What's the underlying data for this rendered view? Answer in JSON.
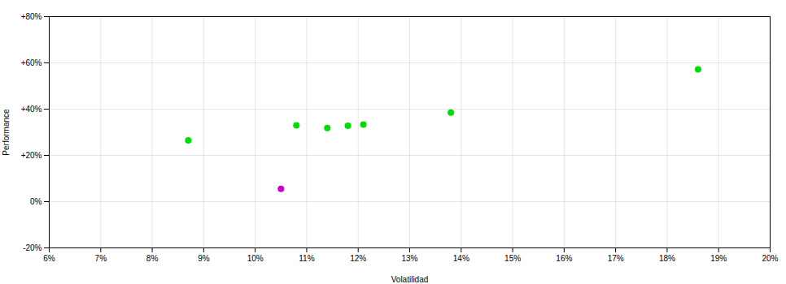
{
  "chart_data": {
    "type": "scatter",
    "x_label": "Volatilidad",
    "y_label": "Performance",
    "series": [
      {
        "color": "#00dd00",
        "x": [
          0.087,
          0.108,
          0.114,
          0.118,
          0.121,
          0.138,
          0.186
        ],
        "values": [
          0.265,
          0.33,
          0.318,
          0.328,
          0.333,
          0.385,
          0.572
        ]
      },
      {
        "color": "#cc00cc",
        "x": [
          0.105
        ],
        "values": [
          0.055
        ]
      }
    ],
    "xlim": [
      0.06,
      0.2
    ],
    "ylim": [
      -0.2,
      0.8
    ],
    "xticks": [
      {
        "value": 0.06,
        "label": "6%"
      },
      {
        "value": 0.07,
        "label": "7%"
      },
      {
        "value": 0.08,
        "label": "8%"
      },
      {
        "value": 0.09,
        "label": "9%"
      },
      {
        "value": 0.1,
        "label": "10%"
      },
      {
        "value": 0.11,
        "label": "11%"
      },
      {
        "value": 0.12,
        "label": "12%"
      },
      {
        "value": 0.13,
        "label": "13%"
      },
      {
        "value": 0.14,
        "label": "14%"
      },
      {
        "value": 0.15,
        "label": "15%"
      },
      {
        "value": 0.16,
        "label": "16%"
      },
      {
        "value": 0.17,
        "label": "17%"
      },
      {
        "value": 0.18,
        "label": "18%"
      },
      {
        "value": 0.19,
        "label": "19%"
      },
      {
        "value": 0.2,
        "label": "20%"
      }
    ],
    "yticks": [
      {
        "value": -0.2,
        "label": "-20%"
      },
      {
        "value": 0.0,
        "label": "0%"
      },
      {
        "value": 0.2,
        "label": "+20%"
      },
      {
        "value": 0.4,
        "label": "+40%"
      },
      {
        "value": 0.6,
        "label": "+60%"
      },
      {
        "value": 0.8,
        "label": "+80%"
      }
    ],
    "grid": true
  }
}
